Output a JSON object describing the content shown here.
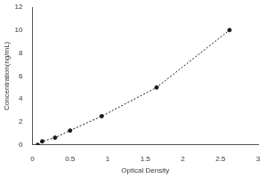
{
  "chart_data": {
    "type": "scatter",
    "x_label": "Optical Density",
    "y_label": "Concentration(ng/mL)",
    "x": [
      0.07,
      0.13,
      0.3,
      0.5,
      0.92,
      1.65,
      2.62
    ],
    "values": [
      0,
      0.31,
      0.63,
      1.25,
      2.5,
      5,
      10
    ],
    "color": "#1a1a1a",
    "marker": "circle",
    "line_style": "dotted",
    "xlim": [
      0,
      3
    ],
    "xticks": [
      0,
      0.5,
      1,
      1.5,
      2,
      2.5,
      3
    ],
    "ylim": [
      0,
      12
    ],
    "yticks": [
      0,
      2,
      4,
      6,
      8,
      10,
      12
    ],
    "grid": false
  }
}
